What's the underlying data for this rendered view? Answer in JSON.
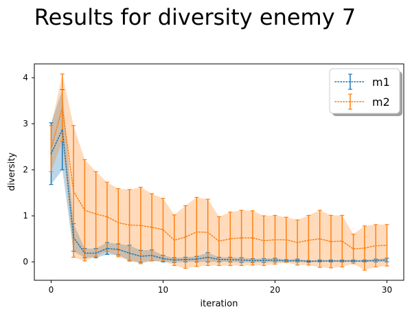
{
  "chart_data": {
    "type": "line",
    "title": "Results for diversity enemy 7",
    "xlabel": "iteration",
    "ylabel": "diversity",
    "xlim": [
      -1.5,
      31.5
    ],
    "ylim": [
      -0.4,
      4.3
    ],
    "xticks": [
      0,
      10,
      20,
      30
    ],
    "yticks": [
      0,
      1,
      2,
      3,
      4
    ],
    "grid": false,
    "legend_position": "top-right",
    "x": [
      0,
      1,
      2,
      3,
      4,
      5,
      6,
      7,
      8,
      9,
      10,
      11,
      12,
      13,
      14,
      15,
      16,
      17,
      18,
      19,
      20,
      21,
      22,
      23,
      24,
      25,
      26,
      27,
      28,
      29,
      30
    ],
    "series": [
      {
        "name": "m1",
        "color": "#1f77b4",
        "line_style": "dotted",
        "values": [
          2.35,
          2.87,
          0.53,
          0.19,
          0.19,
          0.29,
          0.27,
          0.19,
          0.12,
          0.14,
          0.07,
          0.04,
          0.05,
          0.06,
          0.1,
          0.05,
          0.05,
          0.04,
          0.03,
          0.03,
          0.04,
          0.02,
          0.03,
          0.01,
          0.02,
          0.02,
          0.02,
          0.02,
          0.02,
          0.03,
          0.04
        ],
        "errors": [
          0.67,
          0.87,
          0.3,
          0.1,
          0.1,
          0.13,
          0.12,
          0.17,
          0.13,
          0.12,
          0.07,
          0.05,
          0.05,
          0.06,
          0.1,
          0.05,
          0.05,
          0.05,
          0.04,
          0.04,
          0.04,
          0.03,
          0.03,
          0.02,
          0.02,
          0.02,
          0.02,
          0.02,
          0.02,
          0.03,
          0.04
        ]
      },
      {
        "name": "m2",
        "color": "#ff7f0e",
        "line_style": "dotted",
        "values": [
          2.46,
          3.35,
          1.53,
          1.12,
          1.04,
          0.98,
          0.85,
          0.8,
          0.79,
          0.75,
          0.7,
          0.47,
          0.54,
          0.65,
          0.64,
          0.45,
          0.5,
          0.52,
          0.52,
          0.46,
          0.48,
          0.48,
          0.42,
          0.47,
          0.5,
          0.44,
          0.45,
          0.28,
          0.3,
          0.35,
          0.36
        ],
        "errors": [
          0.5,
          0.73,
          1.43,
          1.1,
          0.92,
          0.75,
          0.74,
          0.77,
          0.83,
          0.73,
          0.68,
          0.55,
          0.68,
          0.75,
          0.72,
          0.53,
          0.58,
          0.6,
          0.59,
          0.54,
          0.53,
          0.49,
          0.49,
          0.54,
          0.62,
          0.57,
          0.56,
          0.32,
          0.48,
          0.46,
          0.45
        ]
      }
    ]
  }
}
